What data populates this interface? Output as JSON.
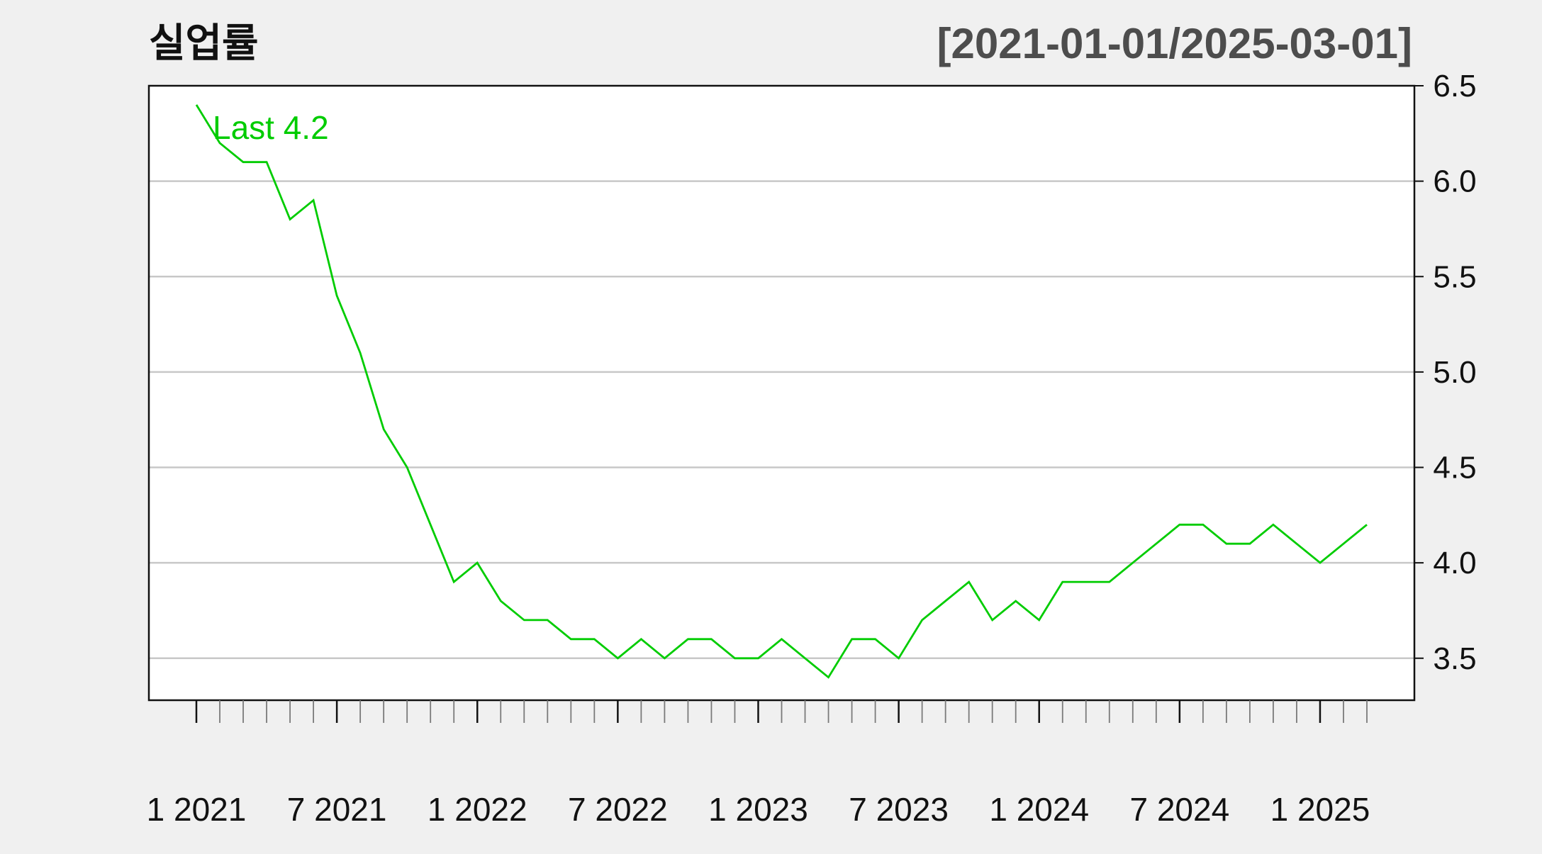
{
  "chart_data": {
    "type": "line",
    "title": "실업률",
    "date_range_label": "[2021-01-01/2025-03-01]",
    "legend_label": "Last 4.2",
    "ylim": [
      3.28,
      6.5
    ],
    "yticks": [
      "3.5",
      "4.0",
      "4.5",
      "5.0",
      "5.5",
      "6.0",
      "6.5"
    ],
    "grid": true,
    "legend_position": "top-left",
    "line_color": "#00cc00",
    "xticks": [
      {
        "index": 0,
        "label": "1 2021"
      },
      {
        "index": 6,
        "label": "7 2021"
      },
      {
        "index": 12,
        "label": "1 2022"
      },
      {
        "index": 18,
        "label": "7 2022"
      },
      {
        "index": 24,
        "label": "1 2023"
      },
      {
        "index": 30,
        "label": "7 2023"
      },
      {
        "index": 36,
        "label": "1 2024"
      },
      {
        "index": 42,
        "label": "7 2024"
      },
      {
        "index": 48,
        "label": "1 2025"
      }
    ],
    "x": [
      "2021-01",
      "2021-02",
      "2021-03",
      "2021-04",
      "2021-05",
      "2021-06",
      "2021-07",
      "2021-08",
      "2021-09",
      "2021-10",
      "2021-11",
      "2021-12",
      "2022-01",
      "2022-02",
      "2022-03",
      "2022-04",
      "2022-05",
      "2022-06",
      "2022-07",
      "2022-08",
      "2022-09",
      "2022-10",
      "2022-11",
      "2022-12",
      "2023-01",
      "2023-02",
      "2023-03",
      "2023-04",
      "2023-05",
      "2023-06",
      "2023-07",
      "2023-08",
      "2023-09",
      "2023-10",
      "2023-11",
      "2023-12",
      "2024-01",
      "2024-02",
      "2024-03",
      "2024-04",
      "2024-05",
      "2024-06",
      "2024-07",
      "2024-08",
      "2024-09",
      "2024-10",
      "2024-11",
      "2024-12",
      "2025-01",
      "2025-02",
      "2025-03"
    ],
    "series": [
      {
        "values": [
          6.4,
          6.2,
          6.1,
          6.1,
          5.8,
          5.9,
          5.4,
          5.1,
          4.7,
          4.5,
          4.2,
          3.9,
          4.0,
          3.8,
          3.7,
          3.7,
          3.6,
          3.6,
          3.5,
          3.6,
          3.5,
          3.6,
          3.6,
          3.5,
          3.5,
          3.6,
          3.5,
          3.4,
          3.6,
          3.6,
          3.5,
          3.7,
          3.8,
          3.9,
          3.7,
          3.8,
          3.7,
          3.9,
          3.9,
          3.9,
          4.0,
          4.1,
          4.2,
          4.2,
          4.1,
          4.1,
          4.2,
          4.1,
          4.0,
          4.1,
          4.2
        ]
      }
    ]
  }
}
